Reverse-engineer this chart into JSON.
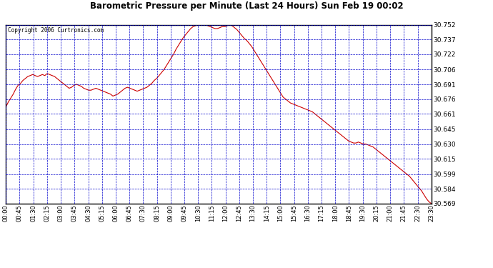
{
  "title": "Barometric Pressure per Minute (Last 24 Hours) Sun Feb 19 00:02",
  "copyright_text": "Copyright 2006 Curtronics.com",
  "line_color": "#cc0000",
  "background_color": "#ffffff",
  "grid_color": "#0000cc",
  "y_ticks": [
    30.569,
    30.584,
    30.599,
    30.615,
    30.63,
    30.645,
    30.661,
    30.676,
    30.691,
    30.706,
    30.722,
    30.737,
    30.752
  ],
  "y_min": 30.569,
  "y_max": 30.752,
  "x_tick_labels": [
    "00:00",
    "00:45",
    "01:30",
    "02:15",
    "03:00",
    "03:45",
    "04:30",
    "05:15",
    "06:00",
    "06:45",
    "07:30",
    "08:15",
    "09:00",
    "09:45",
    "10:30",
    "11:15",
    "12:00",
    "12:45",
    "13:30",
    "14:15",
    "15:00",
    "15:45",
    "16:30",
    "17:15",
    "18:00",
    "18:45",
    "19:30",
    "20:15",
    "21:00",
    "21:45",
    "22:30",
    "23:30"
  ],
  "pressure_values": [
    30.668,
    30.673,
    30.677,
    30.681,
    30.686,
    30.69,
    30.692,
    30.695,
    30.697,
    30.699,
    30.7,
    30.701,
    30.7,
    30.699,
    30.7,
    30.701,
    30.7,
    30.702,
    30.701,
    30.7,
    30.699,
    30.697,
    30.695,
    30.693,
    30.691,
    30.689,
    30.687,
    30.688,
    30.69,
    30.691,
    30.69,
    30.689,
    30.687,
    30.686,
    30.685,
    30.685,
    30.686,
    30.687,
    30.686,
    30.685,
    30.684,
    30.683,
    30.682,
    30.681,
    30.679,
    30.68,
    30.681,
    30.683,
    30.685,
    30.687,
    30.688,
    30.687,
    30.686,
    30.685,
    30.684,
    30.685,
    30.686,
    30.687,
    30.688,
    30.69,
    30.692,
    30.695,
    30.697,
    30.7,
    30.703,
    30.706,
    30.71,
    30.714,
    30.718,
    30.722,
    30.727,
    30.731,
    30.735,
    30.739,
    30.742,
    30.745,
    30.748,
    30.75,
    30.751,
    30.752,
    30.752,
    30.752,
    30.752,
    30.751,
    30.75,
    30.749,
    30.748,
    30.748,
    30.749,
    30.75,
    30.75,
    30.751,
    30.752,
    30.751,
    30.749,
    30.747,
    30.744,
    30.741,
    30.738,
    30.736,
    30.733,
    30.73,
    30.726,
    30.722,
    30.718,
    30.714,
    30.71,
    30.706,
    30.702,
    30.698,
    30.694,
    30.69,
    30.686,
    30.682,
    30.678,
    30.676,
    30.674,
    30.672,
    30.671,
    30.67,
    30.669,
    30.668,
    30.667,
    30.666,
    30.665,
    30.664,
    30.663,
    30.661,
    30.659,
    30.657,
    30.655,
    30.653,
    30.651,
    30.649,
    30.647,
    30.645,
    30.643,
    30.641,
    30.639,
    30.637,
    30.635,
    30.633,
    30.632,
    30.631,
    30.631,
    30.632,
    30.631,
    30.63,
    30.63,
    30.629,
    30.628,
    30.627,
    30.625,
    30.623,
    30.621,
    30.619,
    30.617,
    30.615,
    30.613,
    30.611,
    30.609,
    30.607,
    30.605,
    30.603,
    30.601,
    30.599,
    30.597,
    30.594,
    30.591,
    30.588,
    30.585,
    30.582,
    30.578,
    30.574,
    30.571,
    30.569
  ]
}
